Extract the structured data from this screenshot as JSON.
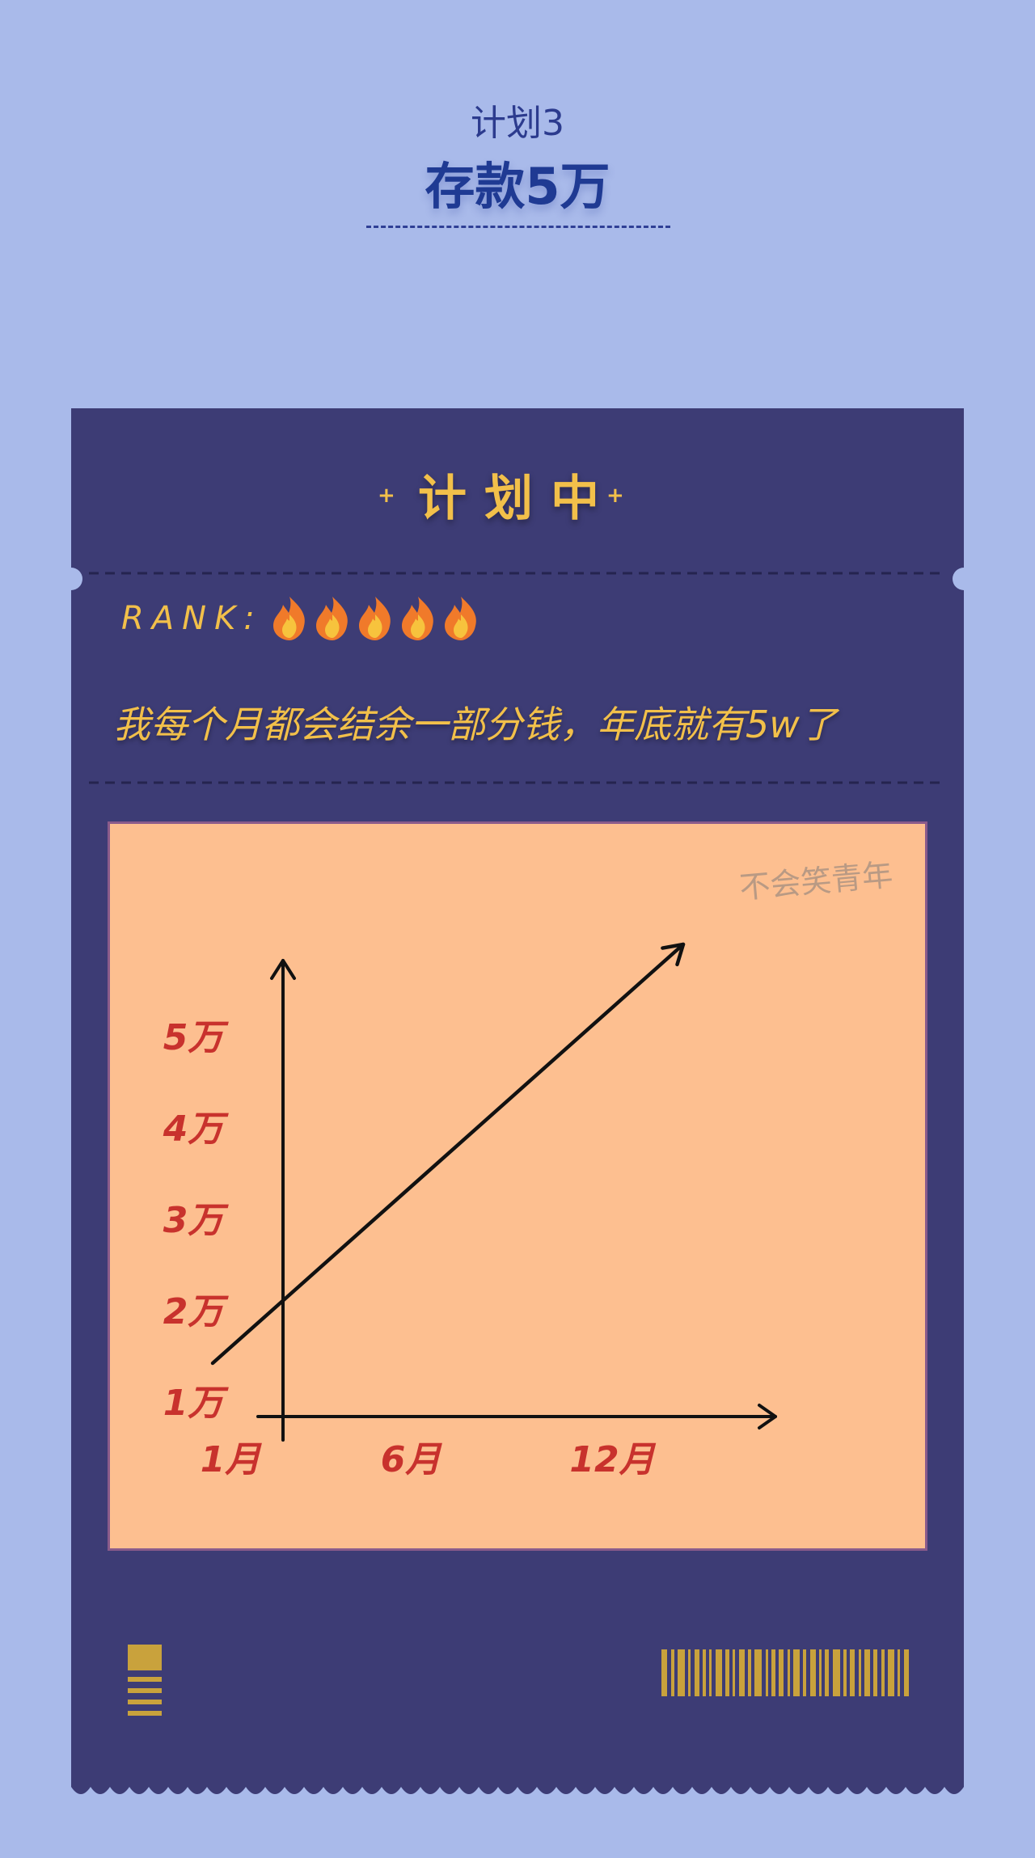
{
  "header": {
    "subtitle": "计划3",
    "title": "存款5万"
  },
  "ticket": {
    "status": "计划中",
    "sparkle": "+",
    "rank_label": "RANK:",
    "rank_icon": "flame-icon",
    "rank_value": 5,
    "description": "我每个月都会结余一部分钱，年底就有5w了",
    "watermark": "不会笑青年"
  },
  "colors": {
    "background": "#a9baea",
    "ticket": "#3d3c75",
    "accent_gold": "#f2c04a",
    "chart_panel": "#fdbf90",
    "axis_label_red": "#c8322d",
    "title_blue": "#1f3a93"
  },
  "chart_data": {
    "type": "line",
    "x_ticks": [
      "1月",
      "6月",
      "12月"
    ],
    "y_ticks": [
      "1万",
      "2万",
      "3万",
      "4万",
      "5万"
    ],
    "series": [
      {
        "x": [
          "1月",
          "12月"
        ],
        "values": [
          1,
          5
        ]
      }
    ],
    "y_unit": "万",
    "xlabel": "",
    "ylabel": "",
    "grid": false,
    "legend": "none"
  }
}
